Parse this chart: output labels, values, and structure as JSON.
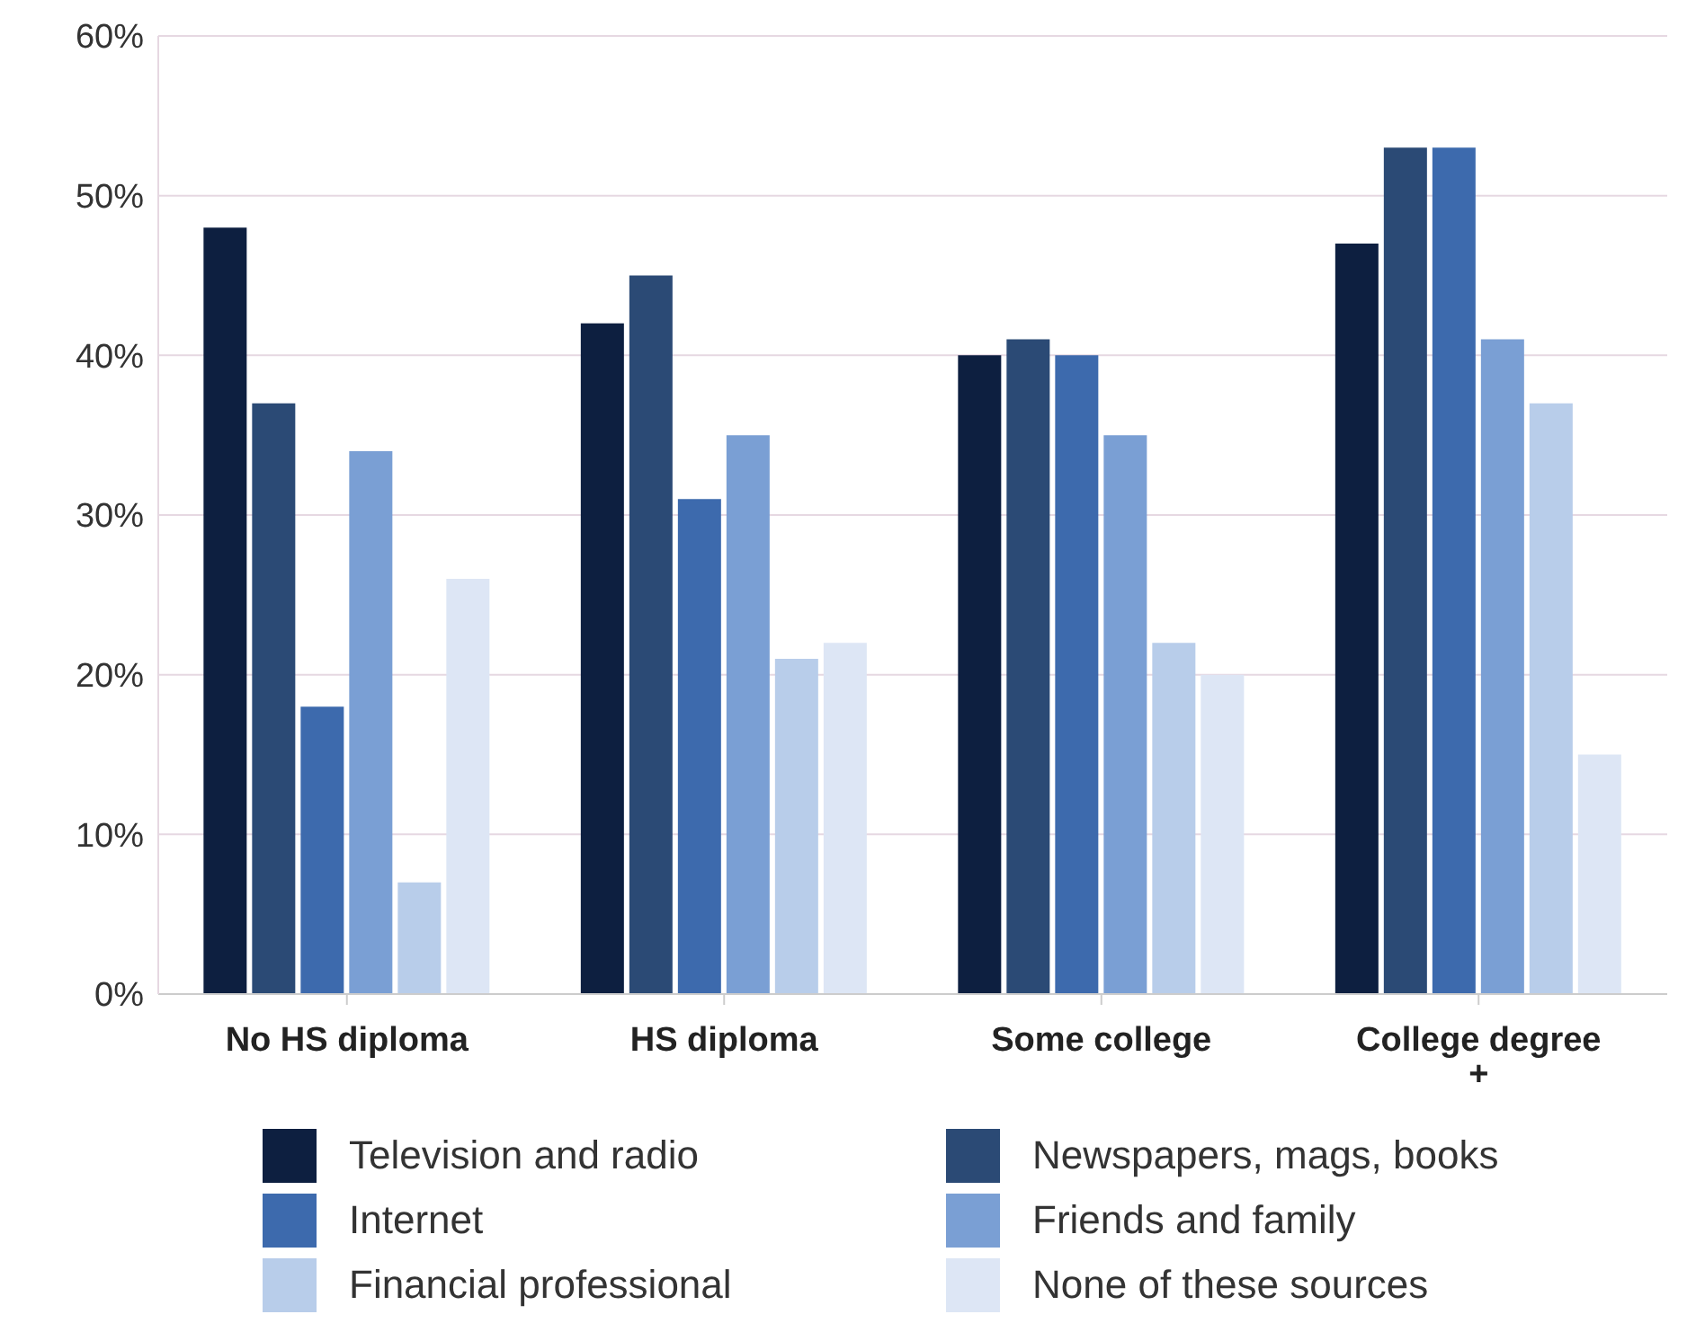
{
  "chart_data": {
    "type": "bar",
    "categories": [
      "No HS diploma",
      "HS diploma",
      "Some college",
      "College degree +"
    ],
    "series": [
      {
        "name": "Television and radio",
        "color": "#0d1f40",
        "values": [
          48,
          42,
          40,
          47
        ]
      },
      {
        "name": "Newspapers, mags, books",
        "color": "#2b4a75",
        "values": [
          37,
          45,
          41,
          53
        ]
      },
      {
        "name": "Internet",
        "color": "#3d6aad",
        "values": [
          18,
          31,
          40,
          53
        ]
      },
      {
        "name": "Friends and family",
        "color": "#7a9fd4",
        "values": [
          34,
          35,
          35,
          41
        ]
      },
      {
        "name": "Financial professional",
        "color": "#b8cdea",
        "values": [
          7,
          21,
          22,
          37
        ]
      },
      {
        "name": "None of these sources",
        "color": "#dde6f5",
        "values": [
          26,
          22,
          20,
          15
        ]
      }
    ],
    "ylim": [
      0,
      60
    ],
    "yticks": [
      {
        "value": 0,
        "label": "0%"
      },
      {
        "value": 10,
        "label": "10%"
      },
      {
        "value": 20,
        "label": "20%"
      },
      {
        "value": 30,
        "label": "30%"
      },
      {
        "value": 40,
        "label": "40%"
      },
      {
        "value": 50,
        "label": "50%"
      },
      {
        "value": 60,
        "label": "60%"
      }
    ],
    "grid": "y",
    "legend": "bottom"
  }
}
